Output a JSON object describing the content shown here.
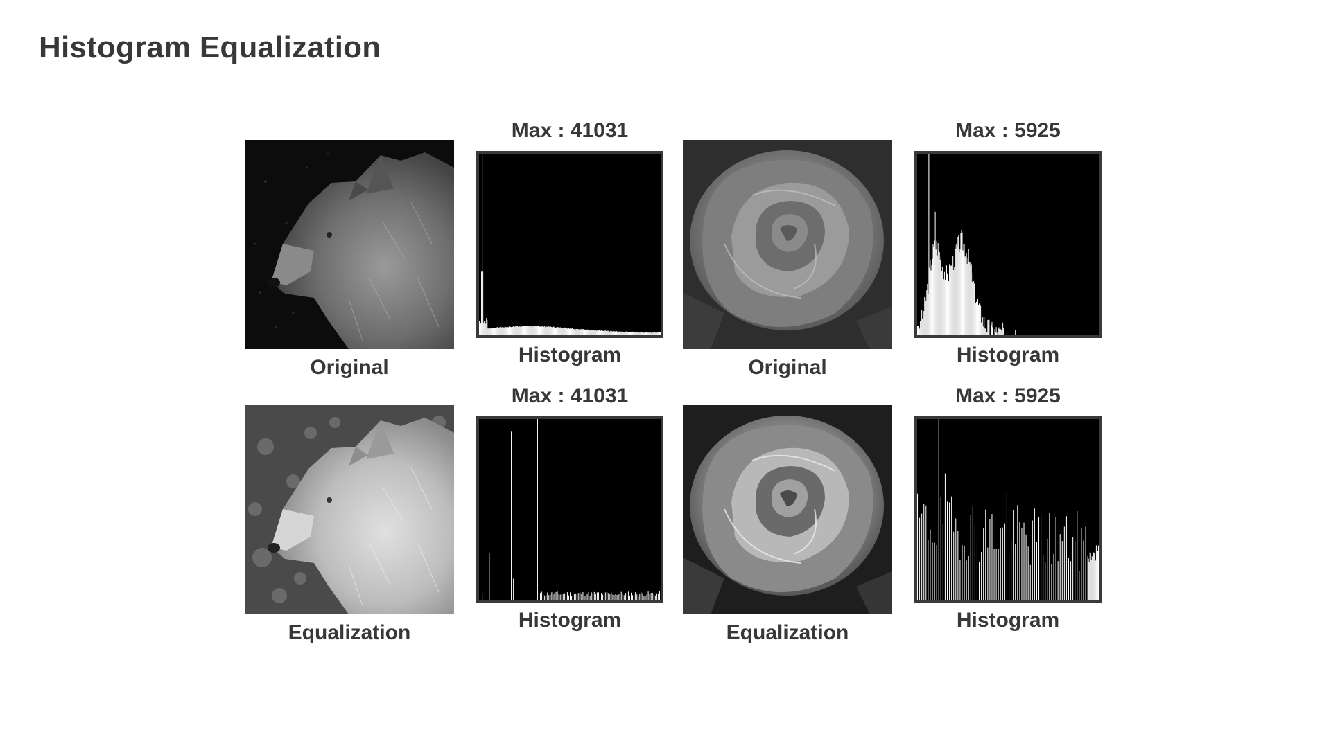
{
  "title": "Histogram Equalization",
  "panels": {
    "wolf_original": {
      "caption": "Original",
      "subject": "wolf",
      "variant": "original"
    },
    "wolf_hist_orig": {
      "max_label": "Max : 41031",
      "caption": "Histogram"
    },
    "rose_original": {
      "caption": "Original",
      "subject": "rose",
      "variant": "original"
    },
    "rose_hist_orig": {
      "max_label": "Max : 5925",
      "caption": "Histogram"
    },
    "wolf_equalized": {
      "caption": "Equalization",
      "subject": "wolf",
      "variant": "equalized"
    },
    "wolf_hist_eq": {
      "max_label": "Max : 41031",
      "caption": "Histogram"
    },
    "rose_equalized": {
      "caption": "Equalization",
      "subject": "rose",
      "variant": "equalized"
    },
    "rose_hist_eq": {
      "max_label": "Max : 5925",
      "caption": "Histogram"
    }
  },
  "colors": {
    "text": "#383838",
    "frame": "#3a3a3a",
    "histogram_bg": "#000000",
    "histogram_bars": "#ffffff"
  }
}
